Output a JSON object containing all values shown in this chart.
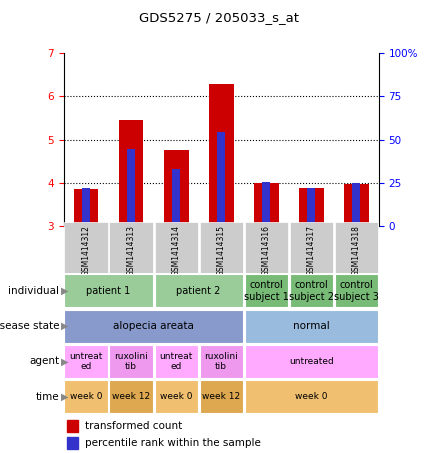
{
  "title": "GDS5275 / 205033_s_at",
  "samples": [
    "GSM1414312",
    "GSM1414313",
    "GSM1414314",
    "GSM1414315",
    "GSM1414316",
    "GSM1414317",
    "GSM1414318"
  ],
  "red_values": [
    3.85,
    5.45,
    4.75,
    6.3,
    3.99,
    3.87,
    3.97
  ],
  "blue_values": [
    3.88,
    4.78,
    4.32,
    5.17,
    4.01,
    3.88,
    3.99
  ],
  "bar_bottom": 3.0,
  "ylim": [
    3.0,
    7.0
  ],
  "y2lim": [
    0,
    100
  ],
  "yticks": [
    3,
    4,
    5,
    6,
    7
  ],
  "y2ticks": [
    0,
    25,
    50,
    75,
    100
  ],
  "y2ticklabels": [
    "0",
    "25",
    "50",
    "75",
    "100%"
  ],
  "red_color": "#cc0000",
  "blue_color": "#3333cc",
  "bar_width": 0.55,
  "blue_bar_width": 0.18,
  "individual_segments": [
    [
      "patient 1",
      0,
      1
    ],
    [
      "patient 2",
      2,
      3
    ],
    [
      "control\nsubject 1",
      4,
      4
    ],
    [
      "control\nsubject 2",
      5,
      5
    ],
    [
      "control\nsubject 3",
      6,
      6
    ]
  ],
  "individual_colors": [
    "#99cc99",
    "#99cc99",
    "#77bb77",
    "#77bb77",
    "#77bb77"
  ],
  "disease_segments": [
    [
      "alopecia areata",
      0,
      3
    ],
    [
      "normal",
      4,
      6
    ]
  ],
  "disease_colors": [
    "#8899cc",
    "#99bbdd"
  ],
  "agent_segments": [
    [
      "untreat\ned",
      0,
      0
    ],
    [
      "ruxolini\ntib",
      1,
      1
    ],
    [
      "untreat\ned",
      2,
      2
    ],
    [
      "ruxolini\ntib",
      3,
      3
    ],
    [
      "untreated",
      4,
      6
    ]
  ],
  "agent_colors": [
    "#ffaaff",
    "#ee99ee",
    "#ffaaff",
    "#ee99ee",
    "#ffaaff"
  ],
  "time_segments": [
    [
      "week 0",
      0,
      0
    ],
    [
      "week 12",
      1,
      1
    ],
    [
      "week 0",
      2,
      2
    ],
    [
      "week 12",
      3,
      3
    ],
    [
      "week 0",
      4,
      6
    ]
  ],
  "time_colors": [
    "#f0c070",
    "#dda850",
    "#f0c070",
    "#dda850",
    "#f0c070"
  ],
  "row_names": [
    "individual",
    "disease state",
    "agent",
    "time"
  ],
  "legend_red": "transformed count",
  "legend_blue": "percentile rank within the sample",
  "n_samples": 7
}
